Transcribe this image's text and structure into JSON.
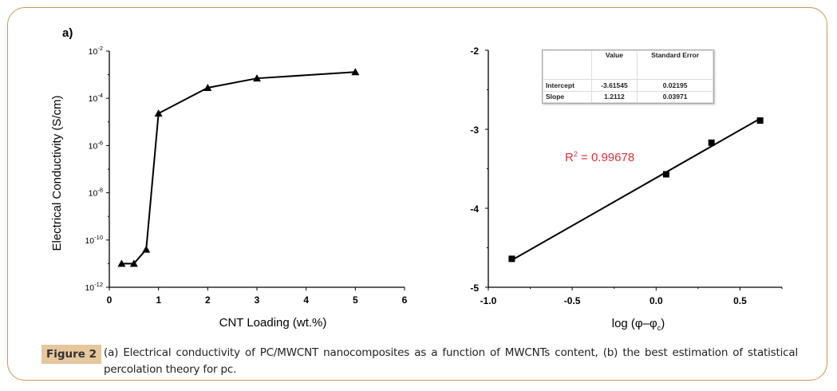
{
  "chart_data": [
    {
      "type": "line",
      "panel_label": "a)",
      "title": "",
      "xlabel": "CNT Loading (wt.%)",
      "ylabel": "Electrical Conductivity (S/cm)",
      "xlim": [
        0,
        6
      ],
      "ylim_log10": [
        -12,
        -2
      ],
      "yscale": "log",
      "x_ticks": [
        "0",
        "1",
        "2",
        "3",
        "4",
        "5",
        "6"
      ],
      "y_ticks": [
        {
          "base": "10",
          "exp": "-12"
        },
        {
          "base": "10",
          "exp": "-10"
        },
        {
          "base": "10",
          "exp": "-8"
        },
        {
          "base": "10",
          "exp": "-6"
        },
        {
          "base": "10",
          "exp": "-4"
        },
        {
          "base": "10",
          "exp": "-2"
        }
      ],
      "marker": "triangle",
      "x": [
        0.25,
        0.5,
        0.75,
        1,
        2,
        3,
        5
      ],
      "y": [
        1e-11,
        1e-11,
        4e-11,
        2.3e-05,
        0.00028,
        0.0007,
        0.0013
      ]
    },
    {
      "type": "scatter",
      "title": "",
      "xlabel_main": "log (φ–φ",
      "xlabel_sub": "c",
      "xlabel_end": ")",
      "ylabel": "",
      "xlim": [
        -1.0,
        0.75
      ],
      "ylim": [
        -5,
        -2
      ],
      "x_ticks": [
        "-1.0",
        "-0.5",
        "0.0",
        "0.5"
      ],
      "y_ticks": [
        "-5",
        "-4",
        "-3",
        "-2"
      ],
      "marker": "square",
      "x": [
        -0.86,
        0.06,
        0.33,
        0.62
      ],
      "y": [
        -4.64,
        -3.57,
        -3.17,
        -2.89
      ],
      "fit": {
        "intercept": -3.61545,
        "slope": 1.2112,
        "x_range": [
          -0.86,
          0.62
        ]
      },
      "annotation": {
        "r2_label": "R",
        "r2_sup": "2",
        "r2_value": " = 0.99678",
        "color": "#d9343a"
      },
      "fit_table": {
        "headers": [
          "",
          "Value",
          "Standard Error"
        ],
        "rows": [
          [
            "Intercept",
            "-3.61545",
            "0.02195"
          ],
          [
            "Slope",
            "1.2112",
            "0.03971"
          ]
        ]
      }
    }
  ],
  "caption": {
    "label": "Figure 2",
    "text": "(a) Electrical conductivity of PC/MWCNT nanocomposites as a function of MWCNTs content, (b) the best estimation of statistical percolation theory for pc."
  },
  "colors": {
    "frame": "#c9965a",
    "label_bg": "#e6c79d",
    "r2": "#d9343a"
  }
}
